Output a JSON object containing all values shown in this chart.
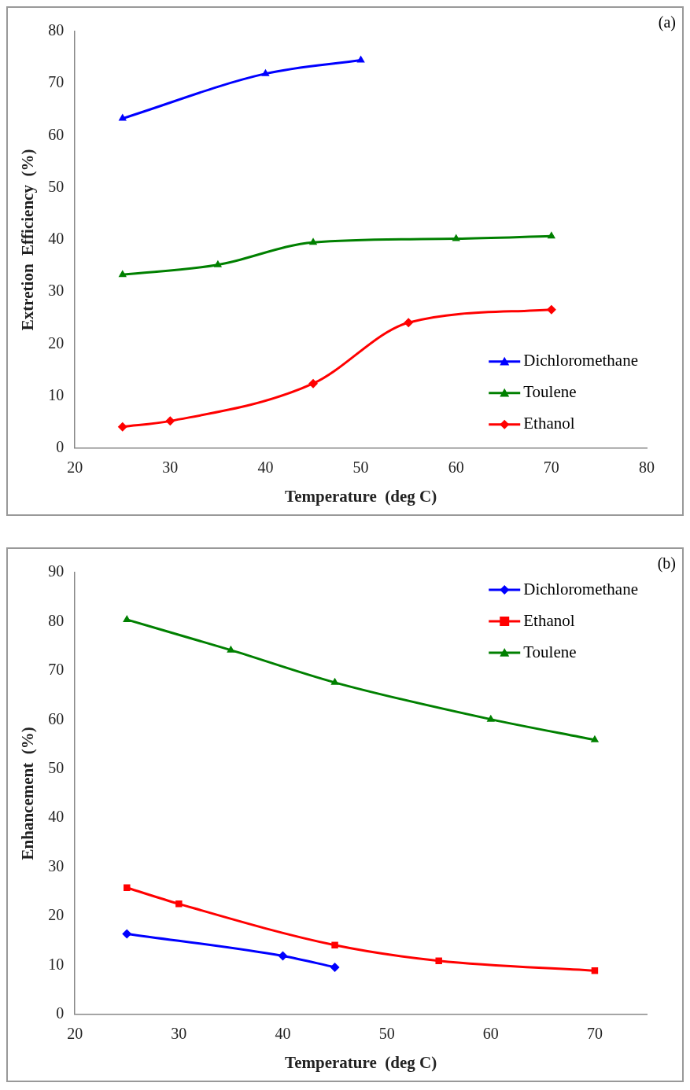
{
  "chart_data": [
    {
      "type": "line",
      "annotations": [
        "(a)"
      ],
      "xlabel": "Temperature  (deg C)",
      "ylabel": "Extretion  Efficiency  (%)",
      "xlim": [
        20,
        80
      ],
      "xticks": [
        20,
        30,
        40,
        50,
        60,
        70,
        80
      ],
      "ylim": [
        0,
        80
      ],
      "yticks": [
        0,
        10,
        20,
        30,
        40,
        50,
        60,
        70,
        80
      ],
      "grid": false,
      "legend": "bottom right",
      "series": [
        {
          "name": "Dichloromethane",
          "color": "#0000ff",
          "marker": "triangle",
          "x": [
            25,
            40,
            50
          ],
          "values": [
            63.3,
            71.9,
            74.5
          ]
        },
        {
          "name": "Toulene",
          "color": "#008000",
          "marker": "triangle",
          "x": [
            25,
            35,
            45,
            60,
            70
          ],
          "values": [
            33.3,
            35.2,
            39.5,
            40.2,
            40.7
          ]
        },
        {
          "name": "Ethanol",
          "color": "#ff0000",
          "marker": "diamond",
          "x": [
            25,
            30,
            45,
            55,
            70
          ],
          "values": [
            4.1,
            5.2,
            12.4,
            24.1,
            26.6
          ]
        }
      ]
    },
    {
      "type": "line",
      "annotations": [
        "(b)"
      ],
      "xlabel": "Temperature  (deg C)",
      "ylabel": "Enhancement  (%)",
      "xlim": [
        20,
        75
      ],
      "xticks": [
        20,
        30,
        40,
        50,
        60,
        70
      ],
      "ylim": [
        0,
        90
      ],
      "yticks": [
        0,
        10,
        20,
        30,
        40,
        50,
        60,
        70,
        80,
        90
      ],
      "grid": false,
      "legend": "top right",
      "series": [
        {
          "name": "Dichloromethane",
          "color": "#0000ff",
          "marker": "diamond",
          "x": [
            25,
            40,
            45
          ],
          "values": [
            16.4,
            11.9,
            9.6
          ]
        },
        {
          "name": "Ethanol",
          "color": "#ff0000",
          "marker": "square",
          "x": [
            25,
            30,
            45,
            55,
            70
          ],
          "values": [
            25.8,
            22.5,
            14.1,
            10.9,
            8.9
          ]
        },
        {
          "name": "Toulene",
          "color": "#008000",
          "marker": "triangle",
          "x": [
            25,
            35,
            45,
            60,
            70
          ],
          "values": [
            80.4,
            74.2,
            67.6,
            60.1,
            55.9
          ]
        }
      ]
    }
  ]
}
